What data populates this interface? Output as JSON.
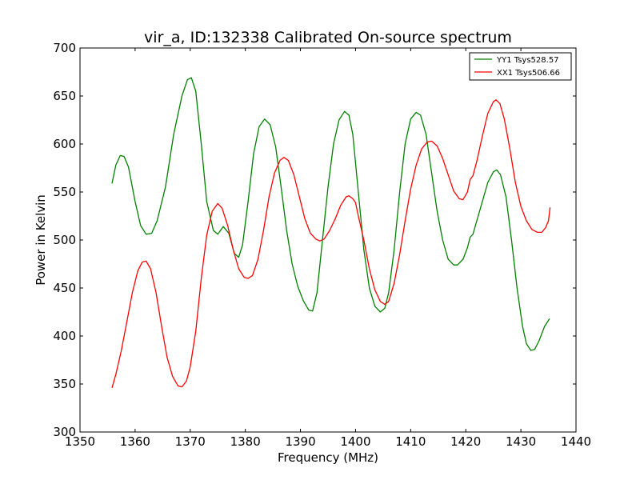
{
  "chart_data": {
    "type": "line",
    "title": "vir_a, ID:132338 Calibrated On-source spectrum",
    "xlabel": "Frequency (MHz)",
    "ylabel": "Power in Kelvin",
    "xlim": [
      1350,
      1440
    ],
    "ylim": [
      300,
      700
    ],
    "xticks": [
      1350,
      1360,
      1370,
      1380,
      1390,
      1400,
      1410,
      1420,
      1430,
      1440
    ],
    "yticks": [
      300,
      350,
      400,
      450,
      500,
      550,
      600,
      650,
      700
    ],
    "grid": false,
    "legend_position": "top-right",
    "series": [
      {
        "name": "YY1 Tsys528.57",
        "color": "#008000",
        "points": [
          [
            1355.8,
            559
          ],
          [
            1356.5,
            578
          ],
          [
            1357.3,
            588
          ],
          [
            1358.0,
            587
          ],
          [
            1358.8,
            576
          ],
          [
            1360.0,
            540
          ],
          [
            1361.0,
            515
          ],
          [
            1362.0,
            506
          ],
          [
            1363.0,
            507
          ],
          [
            1364.0,
            520
          ],
          [
            1365.5,
            555
          ],
          [
            1367.0,
            610
          ],
          [
            1368.5,
            650
          ],
          [
            1369.5,
            667
          ],
          [
            1370.2,
            669
          ],
          [
            1371.0,
            655
          ],
          [
            1372.0,
            600
          ],
          [
            1373.0,
            540
          ],
          [
            1374.2,
            510
          ],
          [
            1375.0,
            506
          ],
          [
            1376.0,
            514
          ],
          [
            1377.0,
            507
          ],
          [
            1378.0,
            486
          ],
          [
            1378.8,
            482
          ],
          [
            1379.5,
            495
          ],
          [
            1380.5,
            540
          ],
          [
            1381.5,
            590
          ],
          [
            1382.5,
            618
          ],
          [
            1383.5,
            626
          ],
          [
            1384.5,
            620
          ],
          [
            1385.5,
            597
          ],
          [
            1386.5,
            555
          ],
          [
            1387.5,
            510
          ],
          [
            1388.5,
            475
          ],
          [
            1389.5,
            452
          ],
          [
            1390.5,
            437
          ],
          [
            1391.5,
            427
          ],
          [
            1392.2,
            426
          ],
          [
            1393.0,
            445
          ],
          [
            1394.0,
            500
          ],
          [
            1395.0,
            555
          ],
          [
            1396.0,
            600
          ],
          [
            1397.0,
            625
          ],
          [
            1398.0,
            634
          ],
          [
            1398.8,
            630
          ],
          [
            1399.5,
            610
          ],
          [
            1400.5,
            550
          ],
          [
            1401.5,
            490
          ],
          [
            1402.5,
            450
          ],
          [
            1403.5,
            431
          ],
          [
            1404.5,
            425
          ],
          [
            1405.3,
            429
          ],
          [
            1406.0,
            445
          ],
          [
            1407.0,
            490
          ],
          [
            1408.0,
            550
          ],
          [
            1409.0,
            600
          ],
          [
            1410.0,
            626
          ],
          [
            1411.0,
            633
          ],
          [
            1411.8,
            630
          ],
          [
            1412.8,
            610
          ],
          [
            1413.8,
            570
          ],
          [
            1414.8,
            530
          ],
          [
            1415.8,
            500
          ],
          [
            1416.8,
            480
          ],
          [
            1417.8,
            474
          ],
          [
            1418.5,
            474
          ],
          [
            1419.5,
            480
          ],
          [
            1420.3,
            492
          ],
          [
            1420.8,
            503
          ],
          [
            1421.3,
            506
          ],
          [
            1422.0,
            520
          ],
          [
            1423.0,
            540
          ],
          [
            1424.0,
            560
          ],
          [
            1425.0,
            571
          ],
          [
            1425.6,
            573
          ],
          [
            1426.3,
            568
          ],
          [
            1427.3,
            545
          ],
          [
            1428.3,
            500
          ],
          [
            1429.3,
            450
          ],
          [
            1430.3,
            410
          ],
          [
            1431.0,
            392
          ],
          [
            1431.8,
            385
          ],
          [
            1432.5,
            386
          ],
          [
            1433.3,
            395
          ],
          [
            1434.3,
            410
          ],
          [
            1435.2,
            418
          ]
        ]
      },
      {
        "name": "XX1 Tsys506.66",
        "color": "#ff0000",
        "points": [
          [
            1355.8,
            346
          ],
          [
            1356.5,
            360
          ],
          [
            1357.5,
            385
          ],
          [
            1358.5,
            415
          ],
          [
            1359.5,
            445
          ],
          [
            1360.5,
            468
          ],
          [
            1361.3,
            477
          ],
          [
            1362.0,
            478
          ],
          [
            1362.8,
            470
          ],
          [
            1363.8,
            445
          ],
          [
            1364.8,
            410
          ],
          [
            1365.8,
            378
          ],
          [
            1366.8,
            358
          ],
          [
            1367.8,
            348
          ],
          [
            1368.5,
            347
          ],
          [
            1369.3,
            353
          ],
          [
            1370.0,
            368
          ],
          [
            1371.0,
            405
          ],
          [
            1372.0,
            460
          ],
          [
            1373.0,
            505
          ],
          [
            1374.0,
            530
          ],
          [
            1375.0,
            538
          ],
          [
            1375.8,
            533
          ],
          [
            1376.8,
            515
          ],
          [
            1377.8,
            490
          ],
          [
            1378.8,
            470
          ],
          [
            1379.8,
            461
          ],
          [
            1380.5,
            460
          ],
          [
            1381.3,
            463
          ],
          [
            1382.3,
            480
          ],
          [
            1383.3,
            510
          ],
          [
            1384.3,
            545
          ],
          [
            1385.3,
            570
          ],
          [
            1386.3,
            583
          ],
          [
            1387.0,
            586
          ],
          [
            1387.8,
            583
          ],
          [
            1388.8,
            568
          ],
          [
            1389.8,
            545
          ],
          [
            1390.8,
            522
          ],
          [
            1391.8,
            507
          ],
          [
            1392.8,
            501
          ],
          [
            1393.5,
            499
          ],
          [
            1394.3,
            501
          ],
          [
            1395.3,
            510
          ],
          [
            1396.3,
            522
          ],
          [
            1397.3,
            536
          ],
          [
            1398.3,
            545
          ],
          [
            1398.8,
            546
          ],
          [
            1399.5,
            543
          ],
          [
            1400.0,
            539
          ],
          [
            1400.5,
            525
          ],
          [
            1401.5,
            500
          ],
          [
            1402.5,
            470
          ],
          [
            1403.5,
            448
          ],
          [
            1404.5,
            436
          ],
          [
            1405.3,
            433
          ],
          [
            1406.0,
            436
          ],
          [
            1407.0,
            455
          ],
          [
            1408.0,
            485
          ],
          [
            1409.0,
            520
          ],
          [
            1410.0,
            553
          ],
          [
            1411.0,
            578
          ],
          [
            1412.0,
            595
          ],
          [
            1413.0,
            602
          ],
          [
            1413.8,
            603
          ],
          [
            1414.8,
            598
          ],
          [
            1415.8,
            585
          ],
          [
            1416.8,
            568
          ],
          [
            1417.8,
            551
          ],
          [
            1418.8,
            543
          ],
          [
            1419.5,
            542
          ],
          [
            1420.3,
            550
          ],
          [
            1420.8,
            563
          ],
          [
            1421.3,
            567
          ],
          [
            1422.0,
            582
          ],
          [
            1423.0,
            608
          ],
          [
            1424.0,
            632
          ],
          [
            1425.0,
            644
          ],
          [
            1425.5,
            646
          ],
          [
            1426.2,
            642
          ],
          [
            1427.0,
            626
          ],
          [
            1428.0,
            595
          ],
          [
            1429.0,
            560
          ],
          [
            1430.0,
            535
          ],
          [
            1431.0,
            520
          ],
          [
            1432.0,
            511
          ],
          [
            1433.0,
            508
          ],
          [
            1433.8,
            508
          ],
          [
            1434.5,
            513
          ],
          [
            1435.0,
            520
          ],
          [
            1435.3,
            534
          ]
        ]
      }
    ]
  }
}
